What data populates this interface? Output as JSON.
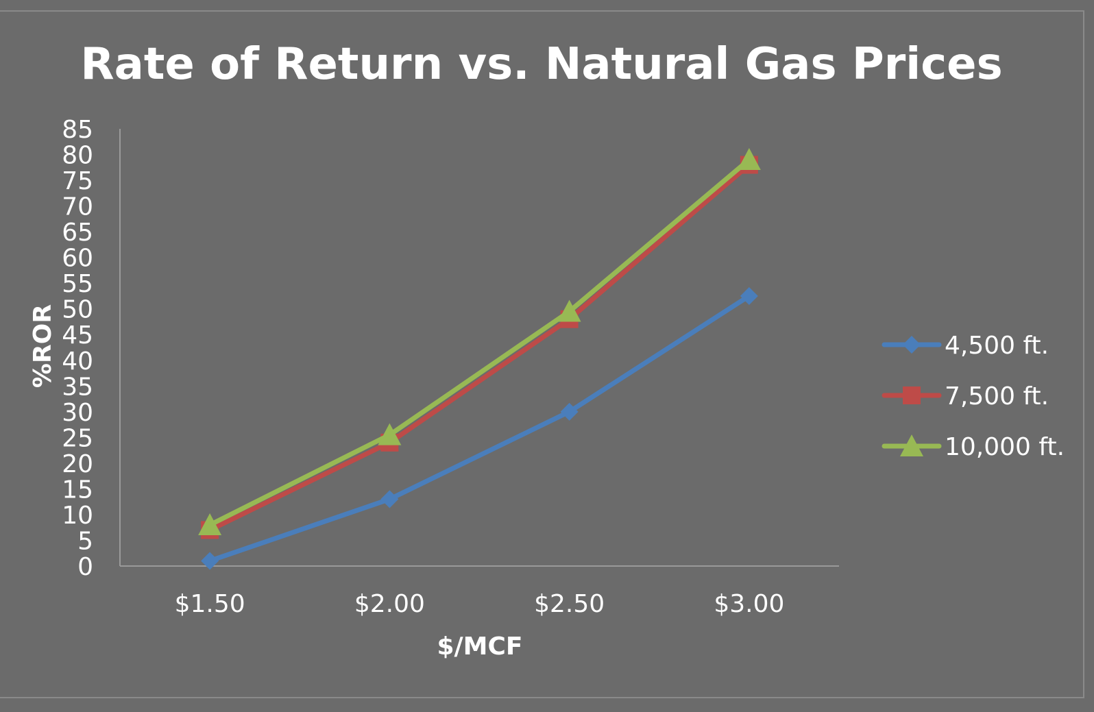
{
  "chart_data": {
    "type": "line",
    "title": "Rate of Return vs. Natural Gas Prices",
    "xlabel": "$/MCF",
    "ylabel": "%ROR",
    "categories": [
      "$1.50",
      "$2.00",
      "$2.50",
      "$3.00"
    ],
    "ylim": [
      0,
      85
    ],
    "yticks": [
      0,
      5,
      10,
      15,
      20,
      25,
      30,
      35,
      40,
      45,
      50,
      55,
      60,
      65,
      70,
      75,
      80,
      85
    ],
    "grid": false,
    "legend_position": "right",
    "series": [
      {
        "name": "4,500 ft.",
        "values": [
          1,
          13,
          30,
          52.5
        ],
        "color": "#4a7ebb",
        "marker": "diamond"
      },
      {
        "name": "7,500 ft.",
        "values": [
          7,
          24,
          48,
          78
        ],
        "color": "#be4b48",
        "marker": "square"
      },
      {
        "name": "10,000 ft.",
        "values": [
          8,
          25.5,
          49.5,
          79
        ],
        "color": "#98b954",
        "marker": "triangle"
      }
    ]
  }
}
